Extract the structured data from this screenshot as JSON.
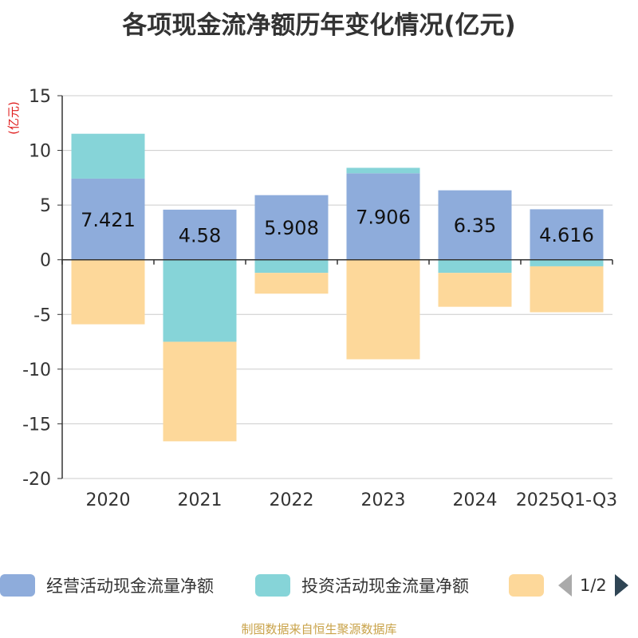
{
  "chart_data": {
    "type": "bar",
    "stacked": true,
    "title": "各项现金流净额历年变化情况(亿元)",
    "ylabel": "(亿元)",
    "ylim": [
      -20,
      15
    ],
    "yticks": [
      15,
      10,
      5,
      0,
      -5,
      -10,
      -15,
      -20
    ],
    "grid": true,
    "categories": [
      "2020",
      "2021",
      "2022",
      "2023",
      "2024",
      "2025Q1-Q3"
    ],
    "series": [
      {
        "name": "经营活动现金流量净额",
        "color": "#8eacdb",
        "values": [
          7.421,
          4.58,
          5.908,
          7.906,
          6.35,
          4.616
        ],
        "show_labels": true
      },
      {
        "name": "投资活动现金流量净额",
        "color": "#86d4d8",
        "values": [
          4.1,
          -7.5,
          -1.2,
          0.5,
          -1.2,
          -0.6
        ]
      },
      {
        "name": "",
        "color": "#fdd89a",
        "values": [
          -5.9,
          -9.1,
          -1.9,
          -9.1,
          -3.1,
          -4.2
        ]
      }
    ]
  },
  "legend": {
    "pager": "1/2"
  },
  "footer": "制图数据来自恒生聚源数据库"
}
